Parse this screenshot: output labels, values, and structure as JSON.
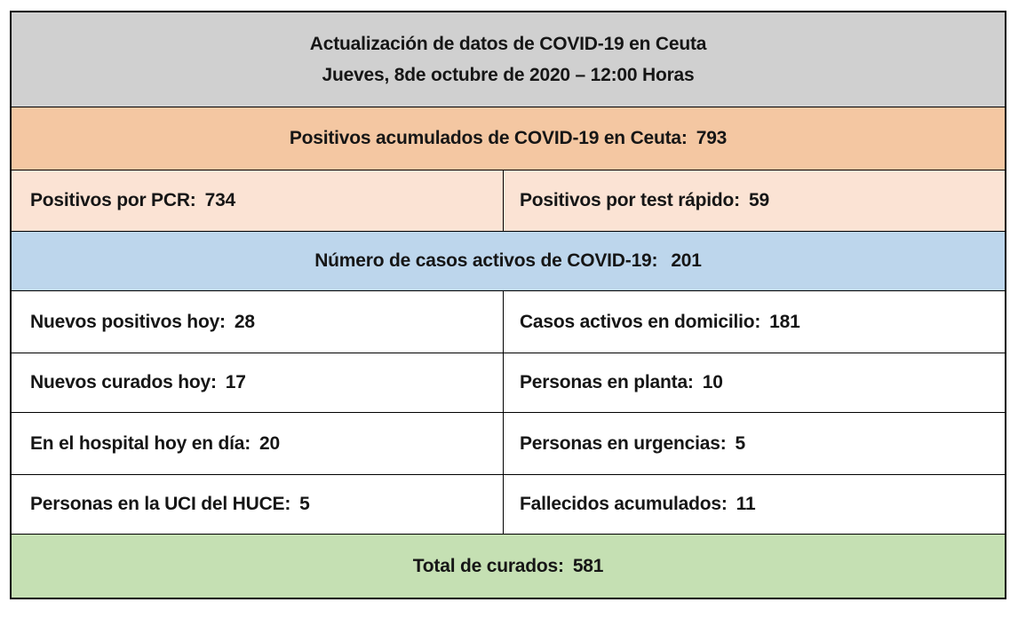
{
  "header": {
    "line1": "Actualización de datos de COVID-19 en Ceuta",
    "line2": "Jueves, 8de octubre de 2020 – 12:00 Horas"
  },
  "accumulated": {
    "label": "Positivos acumulados de COVID-19 en Ceuta:",
    "value": "793"
  },
  "pcr": {
    "label": "Positivos por PCR:",
    "value": "734"
  },
  "rapid_test": {
    "label": "Positivos por test rápido:",
    "value": "59"
  },
  "active_cases": {
    "label": "Número de casos activos de COVID-19:",
    "value": "201"
  },
  "detail_rows": [
    {
      "left": {
        "label": "Nuevos positivos hoy:",
        "value": "28"
      },
      "right": {
        "label": "Casos activos en domicilio:",
        "value": "181"
      }
    },
    {
      "left": {
        "label": "Nuevos curados hoy:",
        "value": "17"
      },
      "right": {
        "label": "Personas en planta:",
        "value": "10"
      }
    },
    {
      "left": {
        "label": "En el hospital hoy en día:",
        "value": "20"
      },
      "right": {
        "label": "Personas en urgencias:",
        "value": "5"
      }
    },
    {
      "left": {
        "label": "Personas en la UCI del HUCE:",
        "value": "5"
      },
      "right": {
        "label": "Fallecidos acumulados:",
        "value": "11"
      }
    }
  ],
  "total_cured": {
    "label": "Total de curados:",
    "value": "581"
  },
  "colors": {
    "header_bg": "#d0d0d0",
    "accumulated_bg": "#f4c7a2",
    "subtotals_bg": "#fbe3d4",
    "active_bg": "#bdd6ec",
    "total_bg": "#c5e0b3",
    "border": "#000000",
    "text": "#161616"
  }
}
